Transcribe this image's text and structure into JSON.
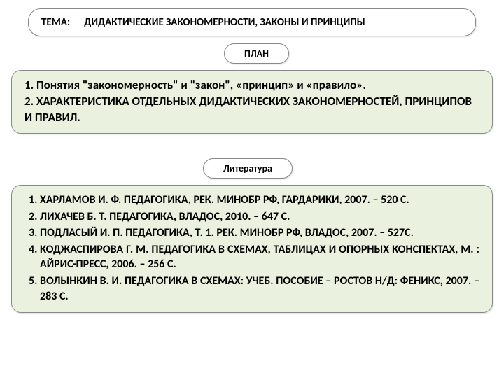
{
  "header": {
    "label": "ТЕМА:",
    "title": "ДИДАКТИЧЕСКИЕ ЗАКОНОМЕРНОСТИ, ЗАКОНЫ И ПРИНЦИПЫ"
  },
  "plan": {
    "label": "ПЛАН",
    "item1": "1. Понятия \"закономерность\" и \"закон\", «принцип» и «правило».",
    "item2": "2. ХАРАКТЕРИСТИКА ОТДЕЛЬНЫХ ДИДАКТИЧЕСКИХ ЗАКОНОМЕРНОСТЕЙ, ПРИНЦИПОВ И ПРАВИЛ."
  },
  "literature": {
    "label": "Литература",
    "items": [
      "ХАРЛАМОВ И. Ф. ПЕДАГОГИКА, РЕК. МИНОБР РФ,  ГАРДАРИКИ, 2007. – 520 С.",
      "ЛИХАЧЕВ Б. Т. ПЕДАГОГИКА, ВЛАДОС, 2010. – 647  С.",
      " ПОДЛАСЫЙ И. П. ПЕДАГОГИКА, Т. 1. РЕК. МИНОБР РФ, ВЛАДОС, 2007. –  527С.",
      "КОДЖАСПИРОВА Г. М. ПЕДАГОГИКА  В СХЕМАХ, ТАБЛИЦАХ И ОПОРНЫХ КОНСПЕКТАХ, М. : АЙРИС-ПРЕСС, 2006. – 256 С.",
      "ВОЛЫНКИН В. И. ПЕДАГОГИКА В СХЕМАХ: УЧЕБ. ПОСОБИЕ – РОСТОВ Н/Д: ФЕНИКС, 2007. – 283 С."
    ]
  },
  "colors": {
    "box_bg": "#eaf1de",
    "border": "#888888"
  }
}
